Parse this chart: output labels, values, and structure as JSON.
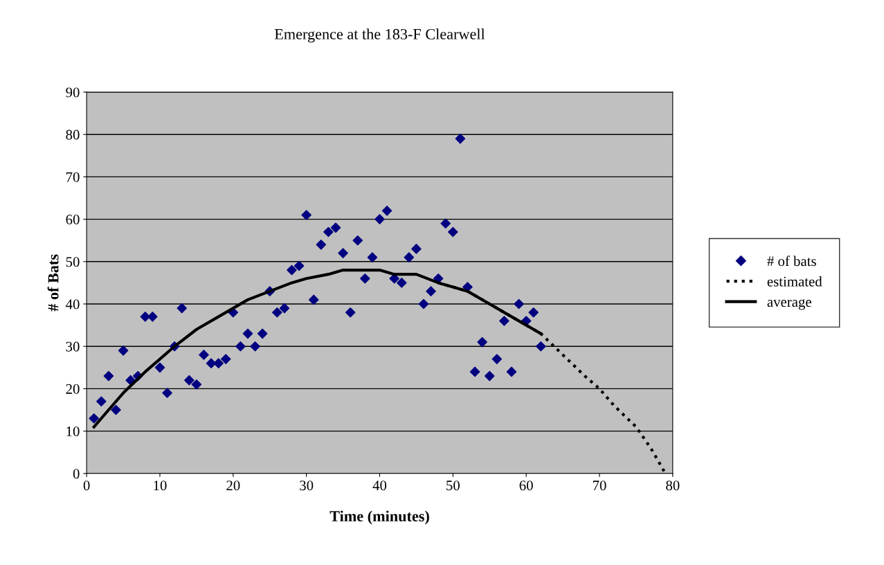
{
  "chart_data": {
    "type": "scatter",
    "title": "Emergence at the 183-F Clearwell",
    "xlabel": "Time (minutes)",
    "ylabel": "# of Bats",
    "xlim": [
      0,
      80
    ],
    "xticks": [
      0,
      10,
      20,
      30,
      40,
      50,
      60,
      70,
      80
    ],
    "ylim": [
      0,
      90
    ],
    "yticks": [
      0,
      10,
      20,
      30,
      40,
      50,
      60,
      70,
      80,
      90
    ],
    "grid": "y",
    "legend": "right",
    "series": [
      {
        "name": "# of bats",
        "marker": "diamond",
        "color": "#000080",
        "x": [
          1,
          2,
          3,
          4,
          5,
          6,
          7,
          8,
          9,
          10,
          11,
          12,
          13,
          14,
          15,
          16,
          17,
          18,
          19,
          20,
          21,
          22,
          23,
          24,
          25,
          26,
          27,
          28,
          29,
          30,
          31,
          32,
          33,
          34,
          35,
          36,
          37,
          38,
          39,
          40,
          41,
          42,
          43,
          44,
          45,
          46,
          47,
          48,
          49,
          50,
          51,
          52,
          53,
          54,
          55,
          56,
          57,
          58,
          59,
          60,
          61,
          62
        ],
        "values": [
          13,
          17,
          23,
          15,
          29,
          22,
          23,
          37,
          37,
          25,
          19,
          30,
          39,
          22,
          21,
          28,
          26,
          26,
          27,
          38,
          30,
          33,
          30,
          33,
          43,
          38,
          39,
          48,
          49,
          61,
          41,
          54,
          57,
          58,
          52,
          38,
          55,
          46,
          51,
          60,
          62,
          46,
          45,
          51,
          53,
          40,
          43,
          46,
          59,
          57,
          79,
          44,
          24,
          31,
          23,
          27,
          36,
          24,
          40,
          36,
          38,
          30
        ]
      },
      {
        "name": "estimated",
        "type": "line",
        "line_style": "dotted",
        "color": "#000000",
        "x": [
          48,
          50,
          52,
          55,
          58,
          60,
          62,
          65,
          68,
          70,
          72,
          75,
          77,
          79
        ],
        "values": [
          45,
          44,
          43,
          40,
          37,
          35,
          33,
          28,
          23,
          20,
          16,
          11,
          6,
          0
        ]
      },
      {
        "name": "average",
        "type": "line",
        "line_style": "solid",
        "color": "#000000",
        "x": [
          1,
          3,
          5,
          8,
          10,
          12,
          15,
          18,
          20,
          22,
          25,
          28,
          30,
          33,
          35,
          38,
          40,
          42,
          45,
          48,
          50,
          52,
          55,
          58,
          60,
          62
        ],
        "values": [
          11,
          15,
          19,
          24,
          27,
          30,
          34,
          37,
          39,
          41,
          43,
          45,
          46,
          47,
          48,
          48,
          48,
          47,
          47,
          45,
          44,
          43,
          40,
          37,
          35,
          33
        ]
      }
    ]
  }
}
